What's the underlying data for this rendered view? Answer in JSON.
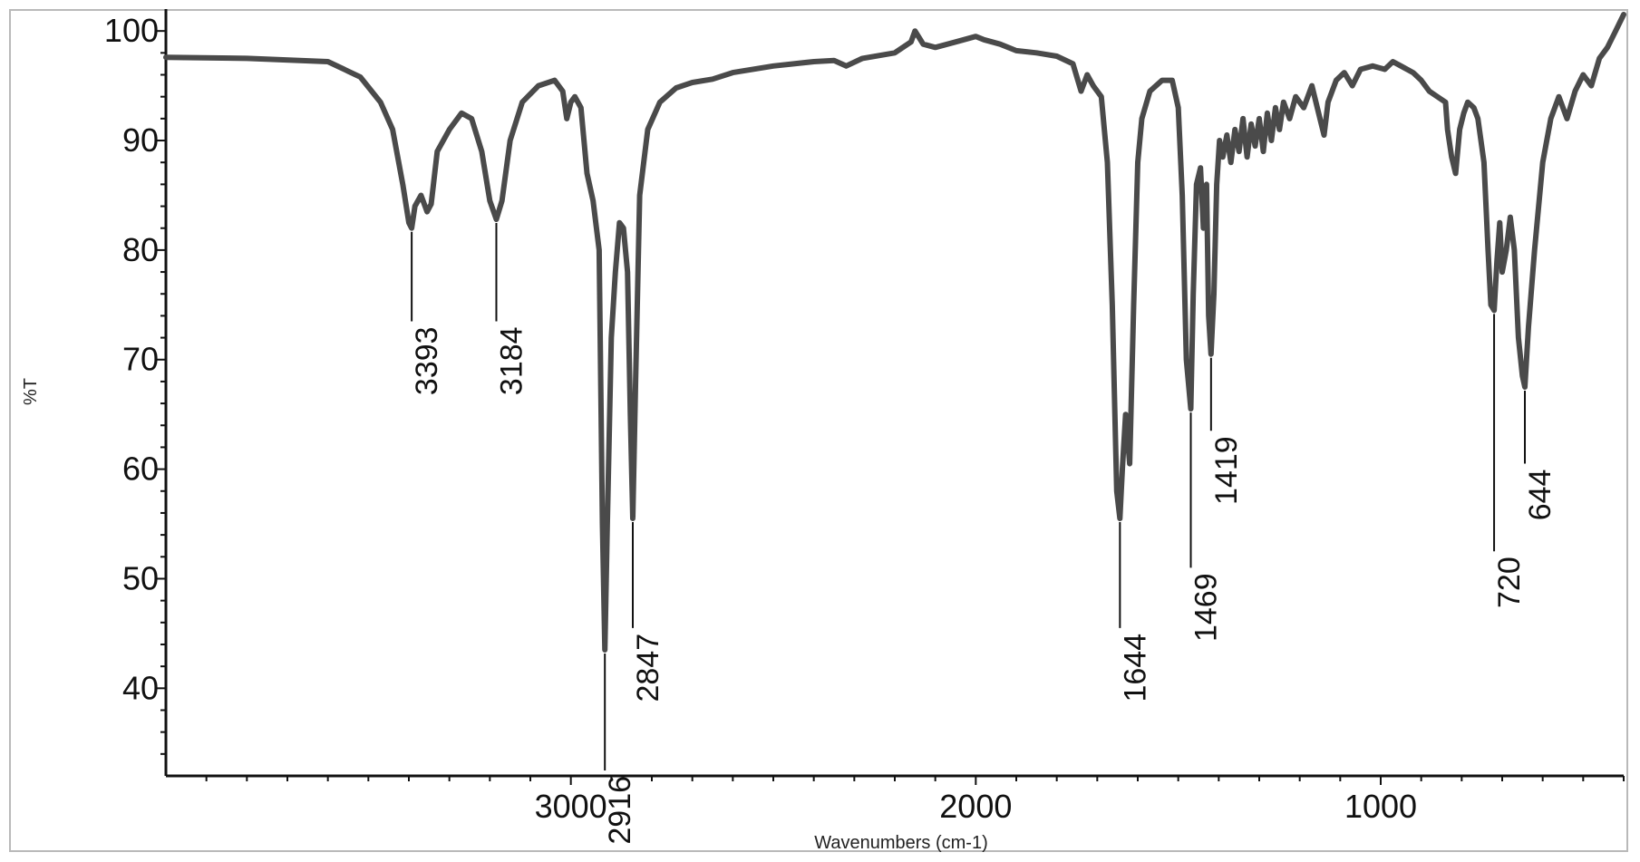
{
  "chart_data": {
    "type": "line",
    "title": "",
    "xlabel": "Wavenumbers (cm-1)",
    "ylabel": "%T",
    "xlim": [
      4000,
      400
    ],
    "ylim": [
      32,
      102
    ],
    "x_reversed": true,
    "grid": false,
    "x_ticks": [
      3000,
      2000,
      1000
    ],
    "y_ticks": [
      40,
      50,
      60,
      70,
      80,
      90,
      100
    ],
    "line_color": "#4a4a4a",
    "series": [
      {
        "points": [
          [
            4000,
            97.6
          ],
          [
            3800,
            97.5
          ],
          [
            3600,
            97.2
          ],
          [
            3520,
            95.8
          ],
          [
            3470,
            93.5
          ],
          [
            3440,
            91.0
          ],
          [
            3415,
            86.0
          ],
          [
            3400,
            82.5
          ],
          [
            3393,
            82.0
          ],
          [
            3385,
            84.0
          ],
          [
            3370,
            85.0
          ],
          [
            3355,
            83.5
          ],
          [
            3345,
            84.2
          ],
          [
            3330,
            89.0
          ],
          [
            3300,
            91.0
          ],
          [
            3270,
            92.5
          ],
          [
            3245,
            92.0
          ],
          [
            3220,
            89.0
          ],
          [
            3200,
            84.5
          ],
          [
            3184,
            82.8
          ],
          [
            3170,
            84.5
          ],
          [
            3150,
            90.0
          ],
          [
            3120,
            93.5
          ],
          [
            3080,
            95.0
          ],
          [
            3040,
            95.5
          ],
          [
            3020,
            94.5
          ],
          [
            3010,
            92.0
          ],
          [
            3000,
            93.5
          ],
          [
            2990,
            94.0
          ],
          [
            2975,
            93.0
          ],
          [
            2960,
            87.0
          ],
          [
            2945,
            84.5
          ],
          [
            2930,
            80.0
          ],
          [
            2922,
            55.0
          ],
          [
            2916,
            43.5
          ],
          [
            2910,
            55.0
          ],
          [
            2900,
            72.0
          ],
          [
            2890,
            78.0
          ],
          [
            2880,
            82.5
          ],
          [
            2870,
            82.0
          ],
          [
            2860,
            78.0
          ],
          [
            2853,
            65.0
          ],
          [
            2847,
            55.5
          ],
          [
            2840,
            68.0
          ],
          [
            2830,
            85.0
          ],
          [
            2810,
            91.0
          ],
          [
            2780,
            93.5
          ],
          [
            2740,
            94.8
          ],
          [
            2700,
            95.3
          ],
          [
            2650,
            95.6
          ],
          [
            2600,
            96.2
          ],
          [
            2500,
            96.8
          ],
          [
            2400,
            97.2
          ],
          [
            2350,
            97.3
          ],
          [
            2320,
            96.8
          ],
          [
            2280,
            97.5
          ],
          [
            2200,
            98.0
          ],
          [
            2160,
            99.0
          ],
          [
            2150,
            100.0
          ],
          [
            2130,
            98.8
          ],
          [
            2100,
            98.5
          ],
          [
            2050,
            99.0
          ],
          [
            2000,
            99.5
          ],
          [
            1980,
            99.2
          ],
          [
            1940,
            98.8
          ],
          [
            1900,
            98.2
          ],
          [
            1850,
            98.0
          ],
          [
            1800,
            97.7
          ],
          [
            1760,
            97.0
          ],
          [
            1740,
            94.5
          ],
          [
            1725,
            96.0
          ],
          [
            1710,
            95.0
          ],
          [
            1690,
            94.0
          ],
          [
            1675,
            88.0
          ],
          [
            1663,
            75.0
          ],
          [
            1652,
            58.0
          ],
          [
            1644,
            55.5
          ],
          [
            1638,
            60.0
          ],
          [
            1630,
            65.0
          ],
          [
            1620,
            60.5
          ],
          [
            1610,
            75.0
          ],
          [
            1600,
            88.0
          ],
          [
            1590,
            92.0
          ],
          [
            1570,
            94.5
          ],
          [
            1540,
            95.5
          ],
          [
            1515,
            95.5
          ],
          [
            1500,
            93.0
          ],
          [
            1490,
            85.0
          ],
          [
            1480,
            70.0
          ],
          [
            1469,
            65.5
          ],
          [
            1463,
            76.0
          ],
          [
            1455,
            86.0
          ],
          [
            1445,
            87.5
          ],
          [
            1438,
            82.0
          ],
          [
            1430,
            86.0
          ],
          [
            1425,
            74.0
          ],
          [
            1419,
            70.5
          ],
          [
            1412,
            76.0
          ],
          [
            1405,
            86.0
          ],
          [
            1398,
            90.0
          ],
          [
            1390,
            88.5
          ],
          [
            1380,
            90.5
          ],
          [
            1370,
            88.0
          ],
          [
            1360,
            91.0
          ],
          [
            1350,
            89.0
          ],
          [
            1340,
            92.0
          ],
          [
            1330,
            88.5
          ],
          [
            1320,
            91.5
          ],
          [
            1310,
            89.5
          ],
          [
            1300,
            92.0
          ],
          [
            1290,
            89.0
          ],
          [
            1280,
            92.5
          ],
          [
            1270,
            90.0
          ],
          [
            1260,
            93.0
          ],
          [
            1250,
            91.0
          ],
          [
            1240,
            93.5
          ],
          [
            1225,
            92.0
          ],
          [
            1210,
            94.0
          ],
          [
            1190,
            93.0
          ],
          [
            1170,
            95.0
          ],
          [
            1150,
            92.0
          ],
          [
            1140,
            90.5
          ],
          [
            1130,
            93.5
          ],
          [
            1110,
            95.5
          ],
          [
            1090,
            96.2
          ],
          [
            1070,
            95.0
          ],
          [
            1050,
            96.5
          ],
          [
            1020,
            96.8
          ],
          [
            990,
            96.5
          ],
          [
            970,
            97.2
          ],
          [
            950,
            96.8
          ],
          [
            920,
            96.2
          ],
          [
            900,
            95.5
          ],
          [
            880,
            94.5
          ],
          [
            860,
            94.0
          ],
          [
            840,
            93.5
          ],
          [
            835,
            91.0
          ],
          [
            825,
            88.5
          ],
          [
            815,
            87.0
          ],
          [
            805,
            91.0
          ],
          [
            795,
            92.5
          ],
          [
            785,
            93.5
          ],
          [
            770,
            93.0
          ],
          [
            760,
            92.0
          ],
          [
            745,
            88.0
          ],
          [
            735,
            80.0
          ],
          [
            728,
            75.0
          ],
          [
            720,
            74.5
          ],
          [
            713,
            79.0
          ],
          [
            706,
            82.5
          ],
          [
            700,
            78.0
          ],
          [
            690,
            80.0
          ],
          [
            680,
            83.0
          ],
          [
            670,
            80.0
          ],
          [
            660,
            72.0
          ],
          [
            650,
            68.5
          ],
          [
            644,
            67.5
          ],
          [
            635,
            73.0
          ],
          [
            620,
            80.0
          ],
          [
            600,
            88.0
          ],
          [
            580,
            92.0
          ],
          [
            560,
            94.0
          ],
          [
            540,
            92.0
          ],
          [
            520,
            94.5
          ],
          [
            500,
            96.0
          ],
          [
            480,
            95.0
          ],
          [
            460,
            97.5
          ],
          [
            440,
            98.5
          ],
          [
            420,
            100.0
          ],
          [
            400,
            101.5
          ]
        ]
      }
    ],
    "peak_labels": [
      {
        "text": "3393",
        "x": 3393,
        "y": 82.0,
        "label_y": 73.5
      },
      {
        "text": "3184",
        "x": 3184,
        "y": 82.8,
        "label_y": 73.5
      },
      {
        "text": "2916",
        "x": 2916,
        "y": 43.5,
        "label_y": 32.5
      },
      {
        "text": "2847",
        "x": 2847,
        "y": 55.5,
        "label_y": 45.5
      },
      {
        "text": "1644",
        "x": 1644,
        "y": 55.5,
        "label_y": 45.5
      },
      {
        "text": "1469",
        "x": 1469,
        "y": 65.5,
        "label_y": 51.0
      },
      {
        "text": "1419",
        "x": 1419,
        "y": 70.5,
        "label_y": 63.5
      },
      {
        "text": "720",
        "x": 720,
        "y": 74.5,
        "label_y": 52.5
      },
      {
        "text": "644",
        "x": 644,
        "y": 67.5,
        "label_y": 60.5
      }
    ]
  }
}
